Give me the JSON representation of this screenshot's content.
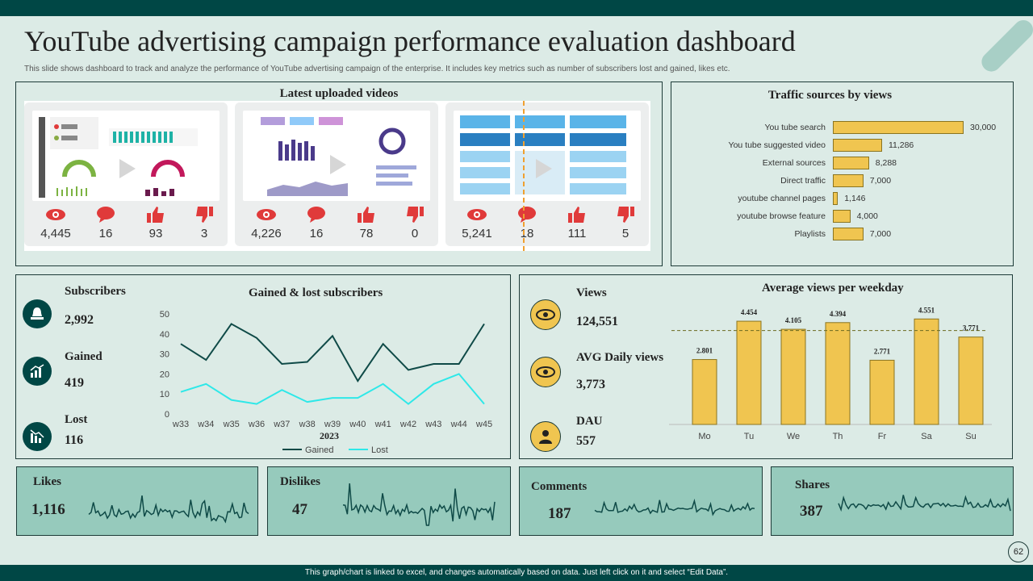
{
  "header": {
    "title": "YouTube advertising campaign performance evaluation dashboard",
    "subtitle": "This slide shows dashboard to track and analyze the performance of YouTube advertising campaign of the enterprise. It includes key metrics such as number of subscribers lost and gained, likes etc."
  },
  "videos": {
    "title": "Latest uploaded videos",
    "items": [
      {
        "views": "4,445",
        "comments": "16",
        "likes": "93",
        "dislikes": "3"
      },
      {
        "views": "4,226",
        "comments": "16",
        "likes": "78",
        "dislikes": "0"
      },
      {
        "views": "5,241",
        "comments": "18",
        "likes": "111",
        "dislikes": "5"
      }
    ]
  },
  "traffic": {
    "title": "Traffic sources by views",
    "chart_data": {
      "type": "bar",
      "orientation": "horizontal",
      "categories": [
        "You tube search",
        "You tube suggested video",
        "External sources",
        "Direct traffic",
        "youtube channel pages",
        "youtube browse feature",
        "Playlists"
      ],
      "values": [
        30000,
        11286,
        8288,
        7000,
        1146,
        4000,
        7000
      ],
      "labels": [
        "30,000",
        "11,286",
        "8,288",
        "7,000",
        "1,146",
        "4,000",
        "7,000"
      ]
    }
  },
  "subscribers": {
    "label": "Subscribers",
    "value": "2,992",
    "gained_label": "Gained",
    "gained_value": "419",
    "lost_label": "Lost",
    "lost_value": "116"
  },
  "gained_lost": {
    "title": "Gained & lost subscribers",
    "chart_data": {
      "type": "line",
      "x": [
        "w33",
        "w34",
        "w35",
        "w36",
        "w37",
        "w38",
        "w39",
        "w40",
        "w41",
        "w42",
        "w43",
        "w44",
        "w45"
      ],
      "xlabel": "2023",
      "ylim": [
        0,
        50
      ],
      "yticks": [
        0,
        10,
        20,
        30,
        40,
        50
      ],
      "series": [
        {
          "name": "Gained",
          "color": "#0f4a47",
          "values": [
            35,
            27,
            45,
            38,
            25,
            26,
            39,
            16.5,
            35,
            22,
            25,
            25,
            45
          ]
        },
        {
          "name": "Lost",
          "color": "#2ee8e8",
          "values": [
            11,
            15,
            7,
            5,
            12,
            6,
            8,
            8,
            15,
            5,
            15,
            20,
            5
          ]
        }
      ],
      "legend": "bottom"
    }
  },
  "views_metrics": {
    "views_label": "Views",
    "views_value": "124,551",
    "avg_label": "AVG Daily views",
    "avg_value": "3,773",
    "dau_label": "DAU",
    "dau_value": "557"
  },
  "weekday": {
    "title": "Average views per weekday",
    "chart_data": {
      "type": "bar",
      "categories": [
        "Mo",
        "Tu",
        "We",
        "Th",
        "Fr",
        "Sa",
        "Su"
      ],
      "values": [
        2.801,
        4.454,
        4.105,
        4.394,
        2.771,
        4.551,
        3.771
      ],
      "labels": [
        "2.801",
        "4.454",
        "4.105",
        "4.394",
        "2.771",
        "4.551",
        "3.771"
      ],
      "average_line": 4.05
    }
  },
  "engagement": [
    {
      "label": "Likes",
      "value": "1,116"
    },
    {
      "label": "Dislikes",
      "value": "47"
    },
    {
      "label": "Comments",
      "value": "187"
    },
    {
      "label": "Shares",
      "value": "387"
    }
  ],
  "footer": {
    "note": "This graph/chart is linked to excel, and changes automatically based on data. Just left click on it and select “Edit Data”.",
    "page": "62"
  },
  "colors": {
    "dark": "#004745",
    "yellow": "#f0c550",
    "bg": "#dcebe6",
    "card": "#96cabc",
    "red": "#e03a3a"
  }
}
